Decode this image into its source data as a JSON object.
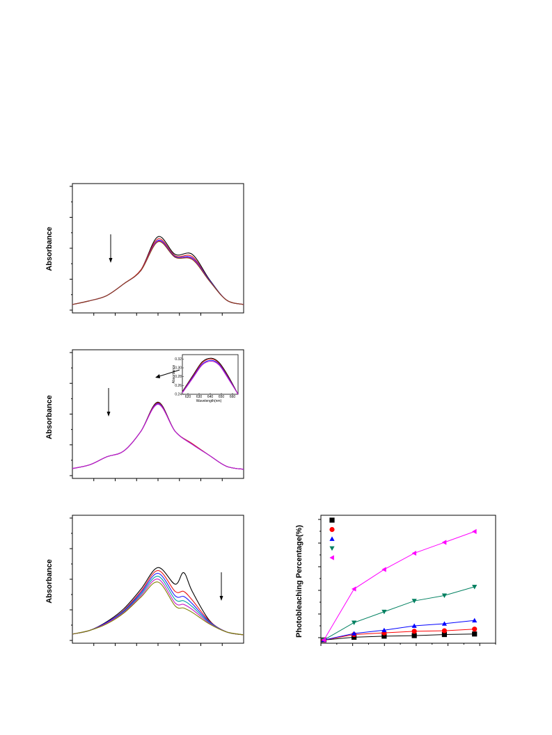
{
  "chart_data": [
    {
      "type": "line",
      "ylabel": "Absorbance",
      "xlabel": "",
      "title": "",
      "annotation": "downward arrow",
      "x": [
        0,
        0.1,
        0.2,
        0.3,
        0.4,
        0.5,
        0.6,
        0.7,
        0.8,
        0.9,
        1.0
      ],
      "series": [
        {
          "color": "#000000",
          "values": [
            0.02,
            0.07,
            0.14,
            0.3,
            0.49,
            0.94,
            0.7,
            0.7,
            0.36,
            0.08,
            0.02
          ]
        },
        {
          "color": "#e8191a",
          "values": [
            0.02,
            0.07,
            0.14,
            0.3,
            0.49,
            0.91,
            0.68,
            0.67,
            0.35,
            0.08,
            0.02
          ]
        },
        {
          "color": "#1a1aff",
          "values": [
            0.02,
            0.07,
            0.14,
            0.3,
            0.48,
            0.89,
            0.67,
            0.65,
            0.35,
            0.08,
            0.02
          ]
        },
        {
          "color": "#c81cc8",
          "values": [
            0.02,
            0.07,
            0.14,
            0.3,
            0.48,
            0.88,
            0.66,
            0.64,
            0.34,
            0.08,
            0.02
          ]
        },
        {
          "color": "#8b4513",
          "values": [
            0.02,
            0.07,
            0.14,
            0.3,
            0.48,
            0.87,
            0.66,
            0.63,
            0.34,
            0.08,
            0.02
          ]
        }
      ]
    },
    {
      "type": "line",
      "ylabel": "Absorbance",
      "xlabel": "",
      "title": "",
      "annotation": "downward arrow",
      "x": [
        0,
        0.1,
        0.2,
        0.3,
        0.4,
        0.5,
        0.6,
        0.7,
        0.8,
        0.9,
        1.0
      ],
      "series": [
        {
          "color": "#000000",
          "values": [
            0.04,
            0.09,
            0.2,
            0.28,
            0.55,
            0.95,
            0.55,
            0.38,
            0.22,
            0.07,
            0.03
          ]
        },
        {
          "color": "#e8191a",
          "values": [
            0.04,
            0.09,
            0.2,
            0.28,
            0.55,
            0.94,
            0.55,
            0.38,
            0.22,
            0.07,
            0.03
          ]
        },
        {
          "color": "#1a1aff",
          "values": [
            0.04,
            0.09,
            0.2,
            0.28,
            0.55,
            0.93,
            0.55,
            0.37,
            0.22,
            0.07,
            0.03
          ]
        },
        {
          "color": "#c81cc8",
          "values": [
            0.04,
            0.09,
            0.2,
            0.28,
            0.55,
            0.92,
            0.55,
            0.37,
            0.22,
            0.07,
            0.03
          ]
        }
      ],
      "inset": {
        "ylabel": "Absorbance",
        "xlabel": "Wavelength(nm)",
        "xticks": [
          "620",
          "630",
          "640",
          "650",
          "660"
        ],
        "yticks": [
          "0.24",
          "0.26",
          "0.28",
          "0.30",
          "0.32"
        ],
        "xlim": [
          615,
          665
        ],
        "ylim": [
          0.24,
          0.33
        ],
        "series": [
          {
            "color": "#000000",
            "x": [
              615,
              625,
              633,
              641,
              648,
              656,
              665
            ],
            "y": [
              0.246,
              0.285,
              0.314,
              0.322,
              0.312,
              0.282,
              0.24
            ]
          },
          {
            "color": "#e8191a",
            "x": [
              615,
              625,
              633,
              641,
              648,
              656,
              665
            ],
            "y": [
              0.245,
              0.283,
              0.312,
              0.32,
              0.31,
              0.28,
              0.24
            ]
          },
          {
            "color": "#1a1aff",
            "x": [
              615,
              625,
              633,
              641,
              648,
              656,
              665
            ],
            "y": [
              0.244,
              0.281,
              0.309,
              0.317,
              0.308,
              0.278,
              0.24
            ]
          },
          {
            "color": "#c81cc8",
            "x": [
              615,
              625,
              633,
              641,
              648,
              656,
              665
            ],
            "y": [
              0.243,
              0.279,
              0.307,
              0.315,
              0.306,
              0.276,
              0.24
            ]
          }
        ]
      }
    },
    {
      "type": "line",
      "ylabel": "Absorbance",
      "xlabel": "",
      "title": "",
      "annotation": "downward arrow",
      "x": [
        0,
        0.1,
        0.2,
        0.3,
        0.4,
        0.5,
        0.6,
        0.65,
        0.7,
        0.8,
        0.9,
        1.0
      ],
      "series": [
        {
          "color": "#000000",
          "values": [
            0.03,
            0.08,
            0.2,
            0.38,
            0.65,
            0.95,
            0.72,
            0.88,
            0.62,
            0.22,
            0.06,
            0.02
          ]
        },
        {
          "color": "#e8191a",
          "values": [
            0.03,
            0.08,
            0.19,
            0.36,
            0.62,
            0.91,
            0.62,
            0.62,
            0.5,
            0.21,
            0.06,
            0.02
          ]
        },
        {
          "color": "#1a1aff",
          "values": [
            0.03,
            0.08,
            0.19,
            0.35,
            0.6,
            0.87,
            0.56,
            0.55,
            0.45,
            0.2,
            0.06,
            0.02
          ]
        },
        {
          "color": "#00a0a0",
          "values": [
            0.03,
            0.08,
            0.18,
            0.34,
            0.58,
            0.83,
            0.51,
            0.49,
            0.41,
            0.19,
            0.06,
            0.02
          ]
        },
        {
          "color": "#c81cc8",
          "values": [
            0.03,
            0.08,
            0.18,
            0.33,
            0.56,
            0.79,
            0.46,
            0.44,
            0.37,
            0.18,
            0.06,
            0.02
          ]
        },
        {
          "color": "#808000",
          "values": [
            0.03,
            0.08,
            0.17,
            0.32,
            0.54,
            0.75,
            0.42,
            0.39,
            0.33,
            0.17,
            0.06,
            0.02
          ]
        }
      ]
    },
    {
      "type": "line",
      "ylabel": "Photobleaching Percentage(%)",
      "xlabel": "",
      "title": "",
      "legend": "top-left",
      "x": [
        0,
        1,
        2,
        3,
        4,
        5
      ],
      "xlim": [
        -0.1,
        5.7
      ],
      "ylim": [
        -0.3,
        11.5
      ],
      "series": [
        {
          "color": "#000000",
          "marker": "square",
          "values": [
            0,
            0.25,
            0.35,
            0.4,
            0.5,
            0.55
          ]
        },
        {
          "color": "#ff0000",
          "marker": "circle",
          "values": [
            0,
            0.5,
            0.65,
            0.8,
            0.85,
            1.0
          ]
        },
        {
          "color": "#0000ff",
          "marker": "triangle-up",
          "values": [
            0,
            0.6,
            0.9,
            1.3,
            1.5,
            1.8
          ]
        },
        {
          "color": "#008060",
          "marker": "triangle-down",
          "values": [
            0,
            1.6,
            2.6,
            3.6,
            4.1,
            4.9
          ]
        },
        {
          "color": "#ff00ff",
          "marker": "triangle-left",
          "values": [
            0,
            4.7,
            6.5,
            8.0,
            9.0,
            10.0
          ]
        }
      ]
    }
  ]
}
